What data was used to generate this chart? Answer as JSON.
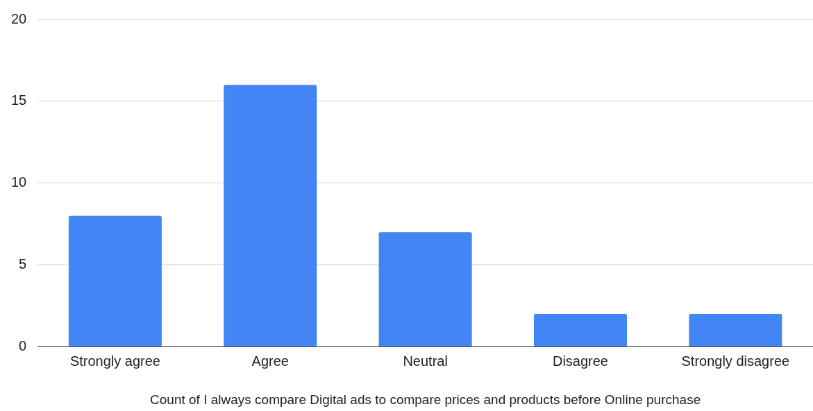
{
  "chart_data": {
    "type": "bar",
    "xlabel": "Count of I always compare Digital ads to compare prices and products before Online purchase",
    "categories": [
      "Strongly agree",
      "Agree",
      "Neutral",
      "Disagree",
      "Strongly disagree"
    ],
    "values": [
      8,
      16,
      7,
      2,
      2
    ],
    "color": "#4285f4",
    "ylim": [
      0,
      20
    ],
    "yticks": [
      0,
      5,
      10,
      15,
      20
    ],
    "grid": "y"
  }
}
